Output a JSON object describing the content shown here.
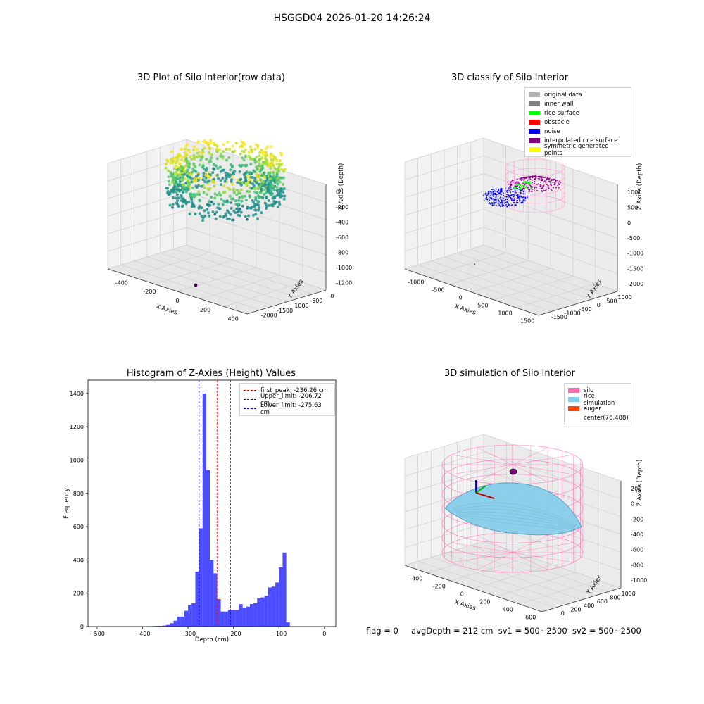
{
  "window_title": "HSGGD04 2026-01-20 14:26:24",
  "panel_raw": {
    "title": "3D Plot of Silo Interior(row data)",
    "xlabel": "X Axies",
    "ylabel": "Y Axies",
    "zlabel": "Z Axies (Depth)",
    "xticks": [
      "-400",
      "-200",
      "0",
      "200",
      "400"
    ],
    "yticks": [
      "0",
      "-500",
      "-1000",
      "-1500",
      "-2000"
    ],
    "zticks": [
      "0",
      "-200",
      "-400",
      "-600",
      "-800",
      "-1000",
      "-1200"
    ]
  },
  "panel_classify": {
    "title": "3D classify of Silo Interior",
    "xlabel": "X Axies",
    "ylabel": "Y Axies",
    "zlabel": "Z Axies (Depth)",
    "xticks": [
      "-1000",
      "-500",
      "0",
      "500",
      "1000",
      "1500"
    ],
    "yticks": [
      "1000",
      "500",
      "0",
      "-500",
      "-1000",
      "-1500"
    ],
    "zticks": [
      "1000",
      "500",
      "0",
      "-500",
      "-1000",
      "-1500",
      "-2000"
    ],
    "legend": [
      {
        "label": "original data",
        "color": "#b3b3b3"
      },
      {
        "label": "inner wall",
        "color": "#808080"
      },
      {
        "label": "rice surface",
        "color": "#00ff00"
      },
      {
        "label": "obstacle",
        "color": "#ff0000"
      },
      {
        "label": "noise",
        "color": "#0000ff"
      },
      {
        "label": "interpolated rice surface",
        "color": "#800080"
      },
      {
        "label": "symmetric generated points",
        "color": "#ffff00"
      }
    ]
  },
  "panel_simulation": {
    "title": "3D simulation of Silo Interior",
    "xlabel": "X Axies",
    "ylabel": "Y Axies",
    "zlabel": "Z Axies (Depth)",
    "xticks": [
      "-400",
      "-200",
      "0",
      "200",
      "400",
      "600"
    ],
    "yticks": [
      "0",
      "200",
      "400",
      "600",
      "800",
      "1000"
    ],
    "zticks": [
      "200",
      "0",
      "-200",
      "-400",
      "-600",
      "-800",
      "-1000"
    ],
    "legend": [
      {
        "label": "silo",
        "color": "#ff69b4"
      },
      {
        "label": "rice simulation",
        "color": "#87ceeb"
      },
      {
        "label": "auger",
        "color": "#ff4500"
      },
      {
        "label": "center(76,488)",
        "color": ""
      }
    ]
  },
  "chart_data": {
    "type": "bar",
    "title": "Histogram of Z-Axies (Height) Values",
    "xlabel": "Depth (cm)",
    "ylabel": "Frequency",
    "xlim": [
      -520,
      25
    ],
    "ylim": [
      0,
      1480
    ],
    "xticks": [
      -500,
      -400,
      -300,
      -200,
      -100,
      0
    ],
    "yticks": [
      0,
      200,
      400,
      600,
      800,
      1000,
      1200,
      1400
    ],
    "bar_color": "#0000ff",
    "bin_edges_start": -500,
    "bin_width": 8,
    "values": [
      1,
      1,
      1,
      1,
      1,
      1,
      1,
      1,
      1,
      1,
      1,
      1,
      1,
      2,
      2,
      3,
      4,
      4,
      6,
      10,
      20,
      35,
      60,
      60,
      95,
      130,
      140,
      330,
      590,
      1400,
      940,
      400,
      320,
      165,
      90,
      90,
      100,
      100,
      100,
      135,
      110,
      120,
      135,
      140,
      170,
      175,
      185,
      235,
      240,
      265,
      355,
      445,
      25
    ],
    "lines": [
      {
        "label": "first_peak: -236.26 cm",
        "x": -236.26,
        "color": "#ff0000"
      },
      {
        "label": "Upper_limit: -206.72 cm",
        "x": -206.72,
        "color": "#0000ff"
      },
      {
        "label": "Lower_limit: -275.63 cm",
        "x": -275.63,
        "color": "#0000ff"
      }
    ],
    "grid": false,
    "legend_position": "upper right"
  },
  "footer": {
    "flag": "flag = 0",
    "avg": "avgDepth = 212 cm",
    "sv1": "sv1 = 500~2500",
    "sv2": "sv2 = 500~2500"
  }
}
